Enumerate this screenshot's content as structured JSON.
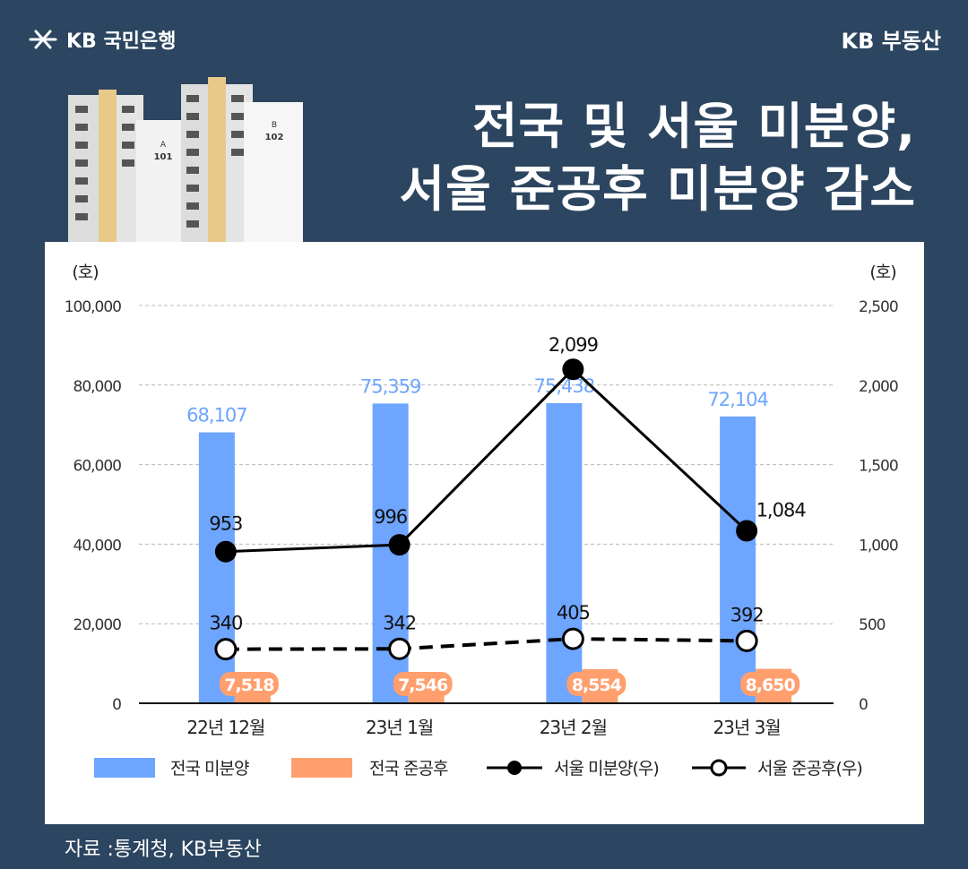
{
  "header": {
    "brand_left": "KB 국민은행",
    "brand_right": "KB 부동산",
    "title_line1": "전국 및 서울 미분양,",
    "title_line2": "서울 준공후 미분양 감소"
  },
  "illustration": {
    "building_a_label": "A",
    "building_a_number": "101",
    "building_b_label": "B",
    "building_b_number": "102"
  },
  "source": "자료 :통계청, KB부동산",
  "colors": {
    "background": "#2c4560",
    "bar_national_unsold": "#6ea5ff",
    "bar_national_after": "#ff9f6e",
    "line": "#000000",
    "label_blue": "#6ea5ff"
  },
  "chart_data": {
    "type": "bar",
    "categories": [
      "22년 12월",
      "23년 1월",
      "23년 2월",
      "23년 3월"
    ],
    "y_unit_left": "(호)",
    "y_unit_right": "(호)",
    "ylim_left": [
      0,
      100000
    ],
    "yticks_left": [
      "0",
      "20,000",
      "40,000",
      "60,000",
      "80,000",
      "100,000"
    ],
    "ylim_right": [
      0,
      2500
    ],
    "yticks_right": [
      "0",
      "500",
      "1,000",
      "1,500",
      "2,000",
      "2,500"
    ],
    "grid": true,
    "legend_position": "bottom",
    "series": [
      {
        "name": "전국 미분양",
        "kind": "bar",
        "axis": "left",
        "values": [
          68107,
          75359,
          75438,
          72104
        ],
        "labels": [
          "68,107",
          "75,359",
          "75,438",
          "72,104"
        ]
      },
      {
        "name": "전국 준공후",
        "kind": "bar",
        "axis": "left",
        "values": [
          7518,
          7546,
          8554,
          8650
        ],
        "labels": [
          "7,518",
          "7,546",
          "8,554",
          "8,650"
        ]
      },
      {
        "name": "서울 미분양(우)",
        "kind": "line-solid",
        "axis": "right",
        "values": [
          953,
          996,
          2099,
          1084
        ],
        "labels": [
          "953",
          "996",
          "2,099",
          "1,084"
        ]
      },
      {
        "name": "서울 준공후(우)",
        "kind": "line-dashed",
        "axis": "right",
        "values": [
          340,
          342,
          405,
          392
        ],
        "labels": [
          "340",
          "342",
          "405",
          "392"
        ]
      }
    ]
  }
}
